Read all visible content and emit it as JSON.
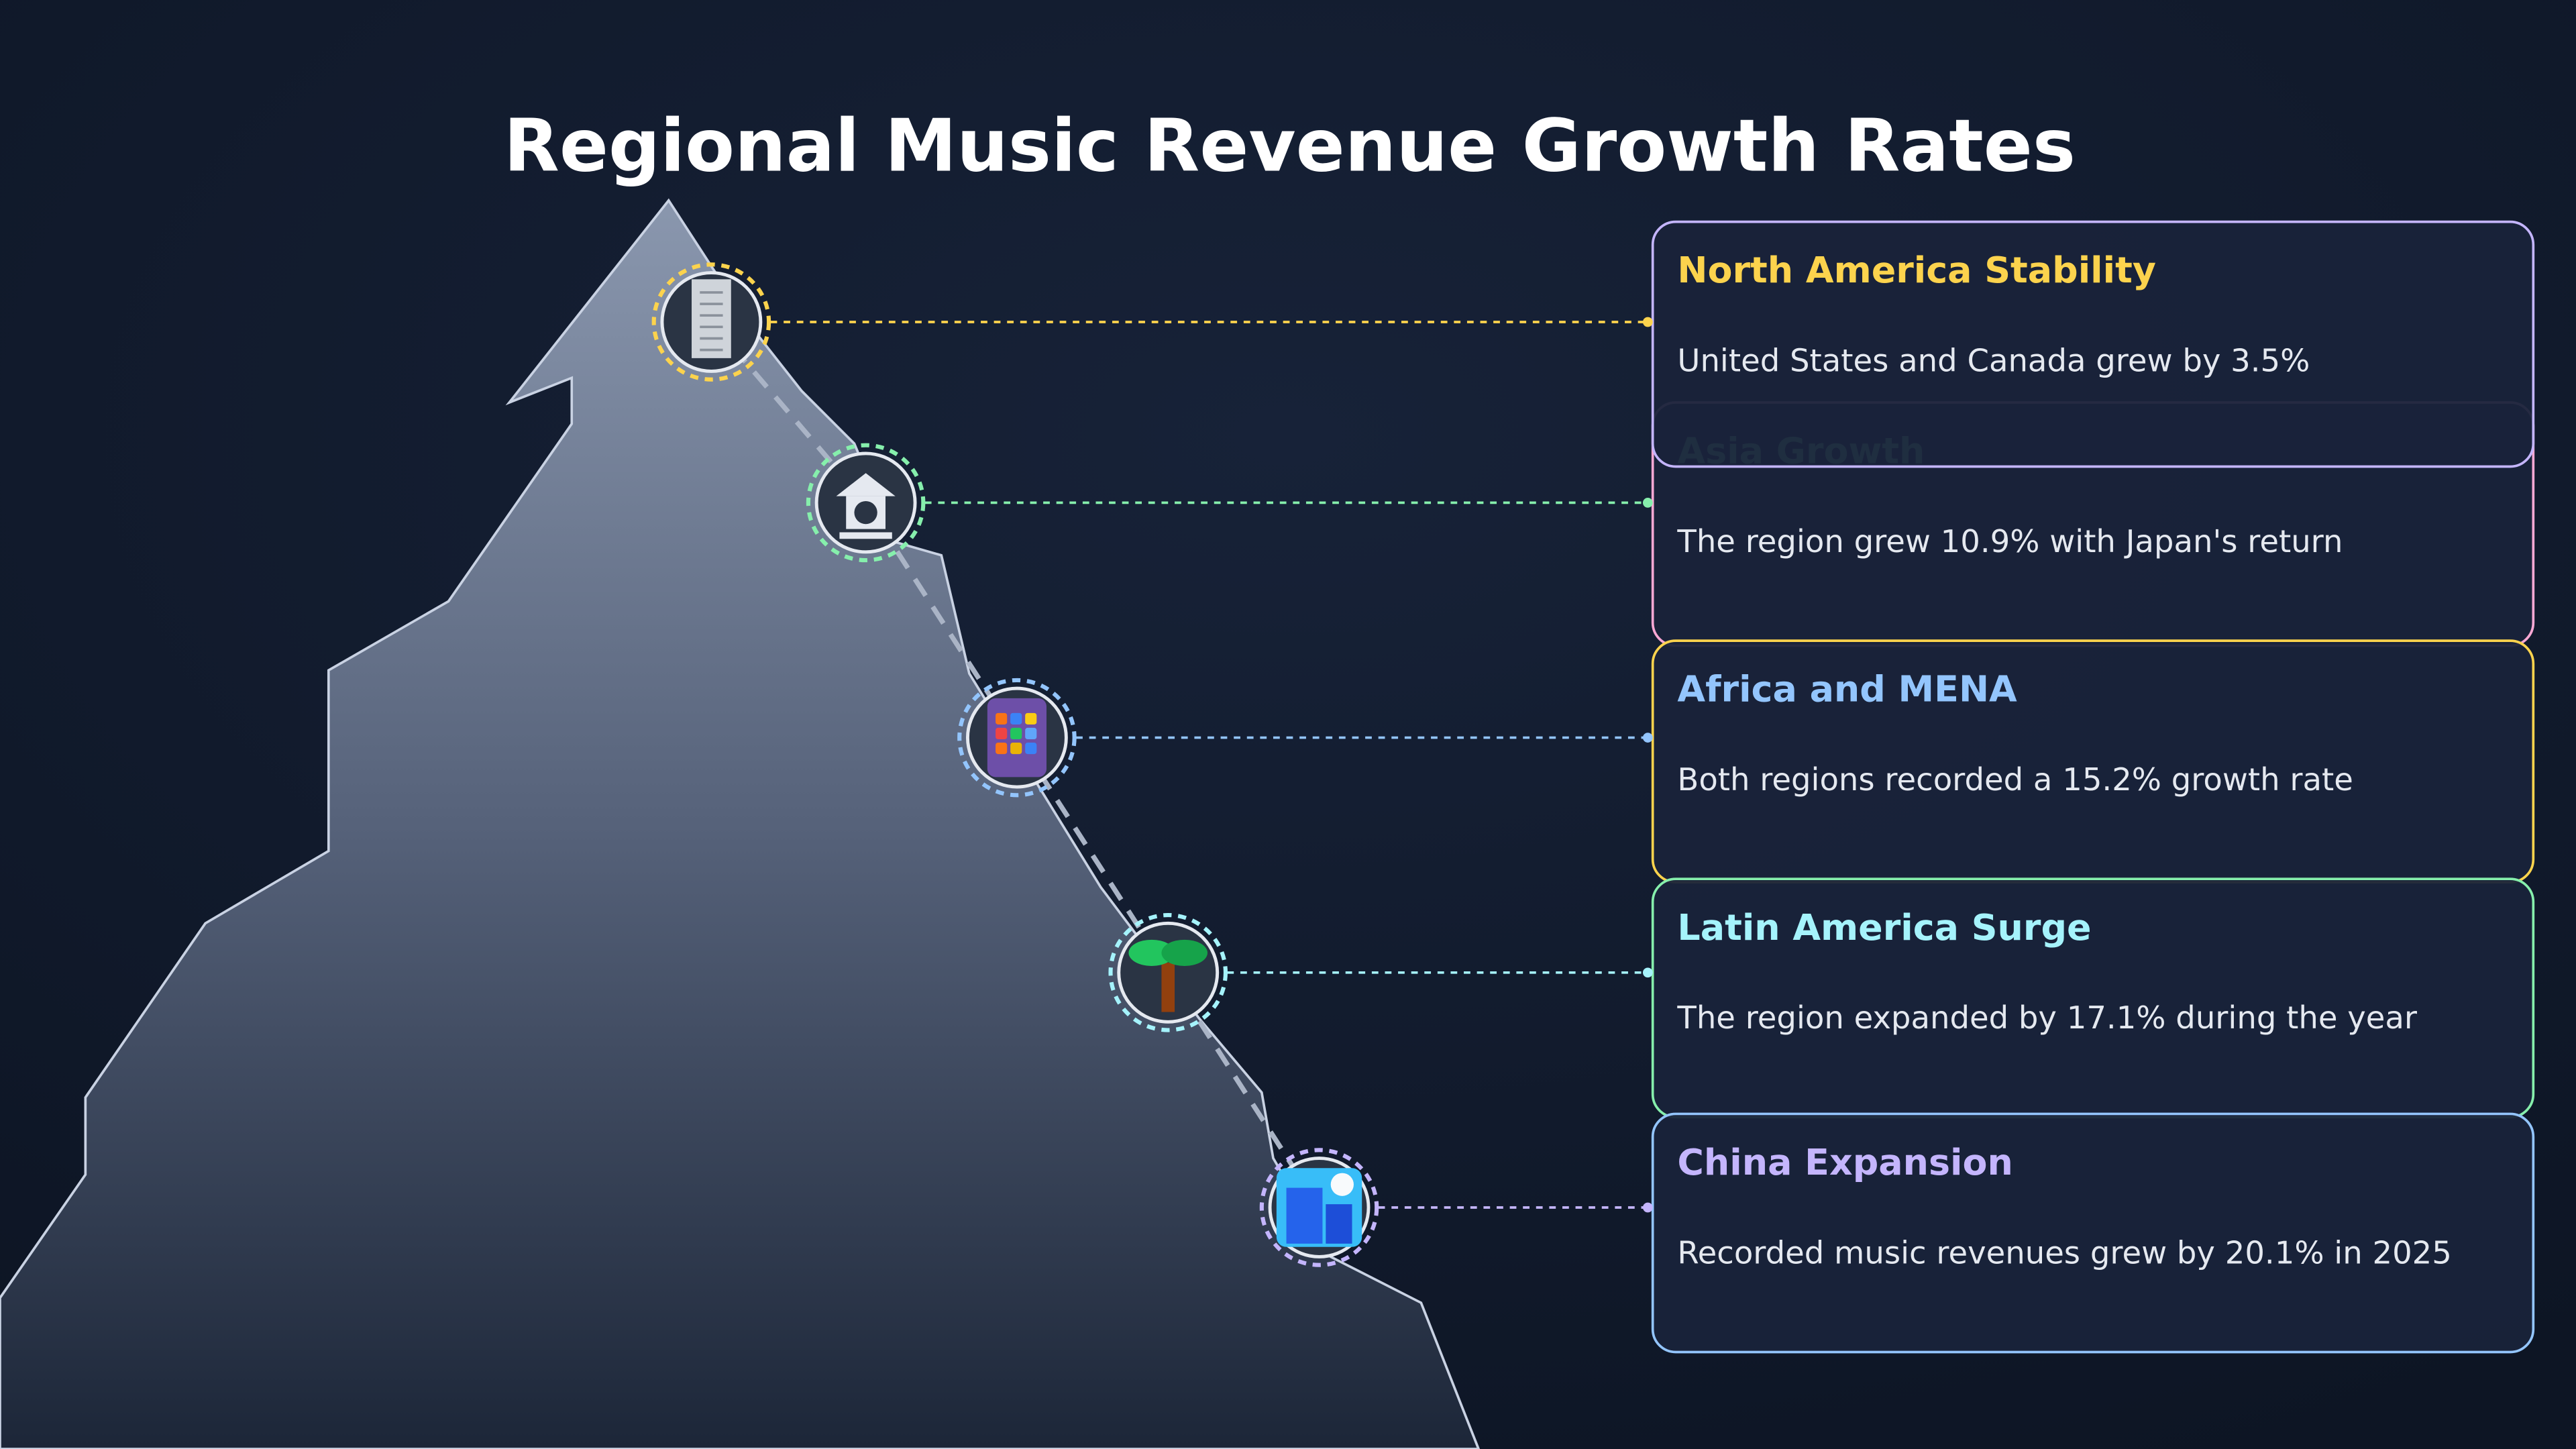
{
  "title": "Regional Music Revenue Growth Rates",
  "items": [
    {
      "title": "North America Stability",
      "description": "United States and Canada grew by 3.5%"
    },
    {
      "title": "Asia Growth",
      "description": "The region grew 10.9% with Japan's return"
    },
    {
      "title": "Africa and MENA",
      "description": "Both regions recorded a 15.2% growth rate"
    },
    {
      "title": "Latin America Surge",
      "description": "The region expanded by 17.1% during the year"
    },
    {
      "title": "China Expansion",
      "description": "Recorded music revenues grew by 20.1% in 2025"
    }
  ]
}
